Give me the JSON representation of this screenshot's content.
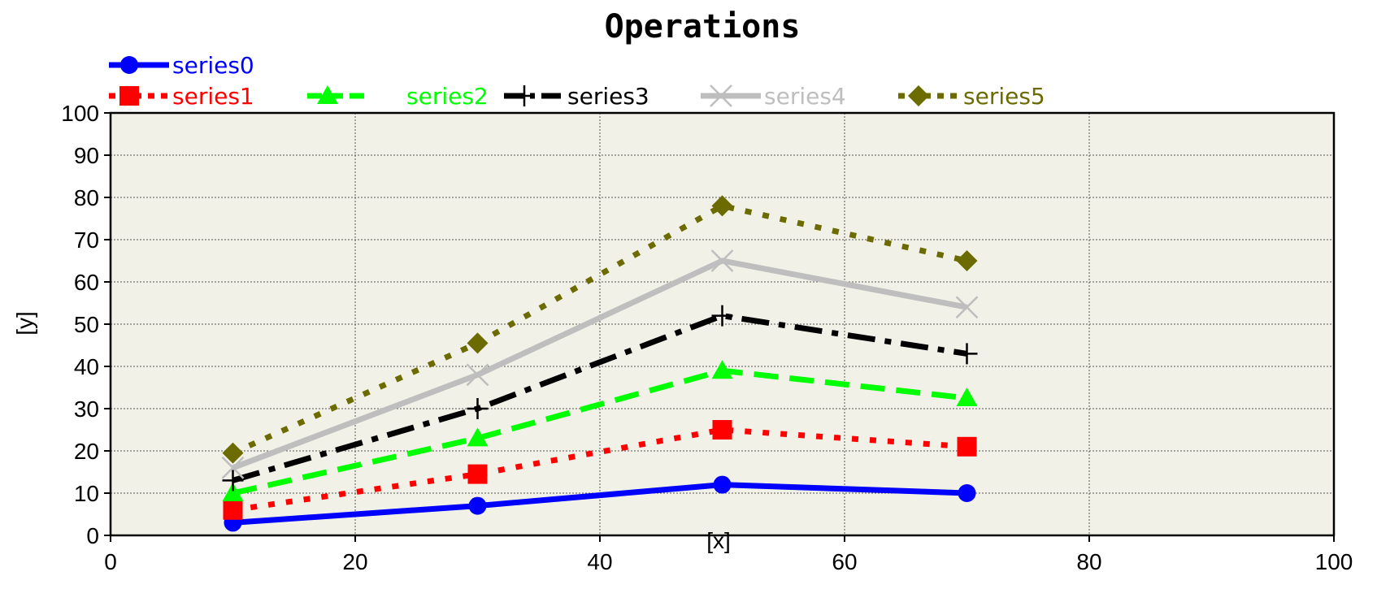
{
  "chart_data": {
    "type": "line",
    "title": "Operations",
    "xlabel": "[x]",
    "ylabel": "[y]",
    "xlim": [
      0,
      100
    ],
    "ylim": [
      0,
      100
    ],
    "xticks": [
      "0",
      "20",
      "40",
      "60",
      "80",
      "100"
    ],
    "yticks": [
      "0",
      "10",
      "20",
      "30",
      "40",
      "50",
      "60",
      "70",
      "80",
      "90",
      "100"
    ],
    "grid": true,
    "legend_position": "top-left",
    "plot_background": "#f2f1e8",
    "x": [
      10,
      30,
      50,
      70
    ],
    "series": [
      {
        "name": "series0",
        "values": [
          3,
          7,
          12,
          10
        ],
        "color": "#0000ff",
        "dash": "solid",
        "marker": "circle"
      },
      {
        "name": "series1",
        "values": [
          6,
          14.5,
          25,
          21
        ],
        "color": "#ff0000",
        "dash": "dot",
        "marker": "square"
      },
      {
        "name": "series2",
        "values": [
          10,
          23,
          39,
          32.5
        ],
        "color": "#00ff00",
        "dash": "dash",
        "marker": "triangle"
      },
      {
        "name": "series3",
        "values": [
          13,
          30,
          52,
          43
        ],
        "color": "#000000",
        "dash": "dashdot",
        "marker": "plus"
      },
      {
        "name": "series4",
        "values": [
          16,
          38,
          65,
          54
        ],
        "color": "#bebebe",
        "dash": "solid",
        "marker": "cross"
      },
      {
        "name": "series5",
        "values": [
          19.5,
          45.5,
          78,
          65
        ],
        "color": "#6b6b00",
        "dash": "dot",
        "marker": "diamond"
      }
    ]
  }
}
